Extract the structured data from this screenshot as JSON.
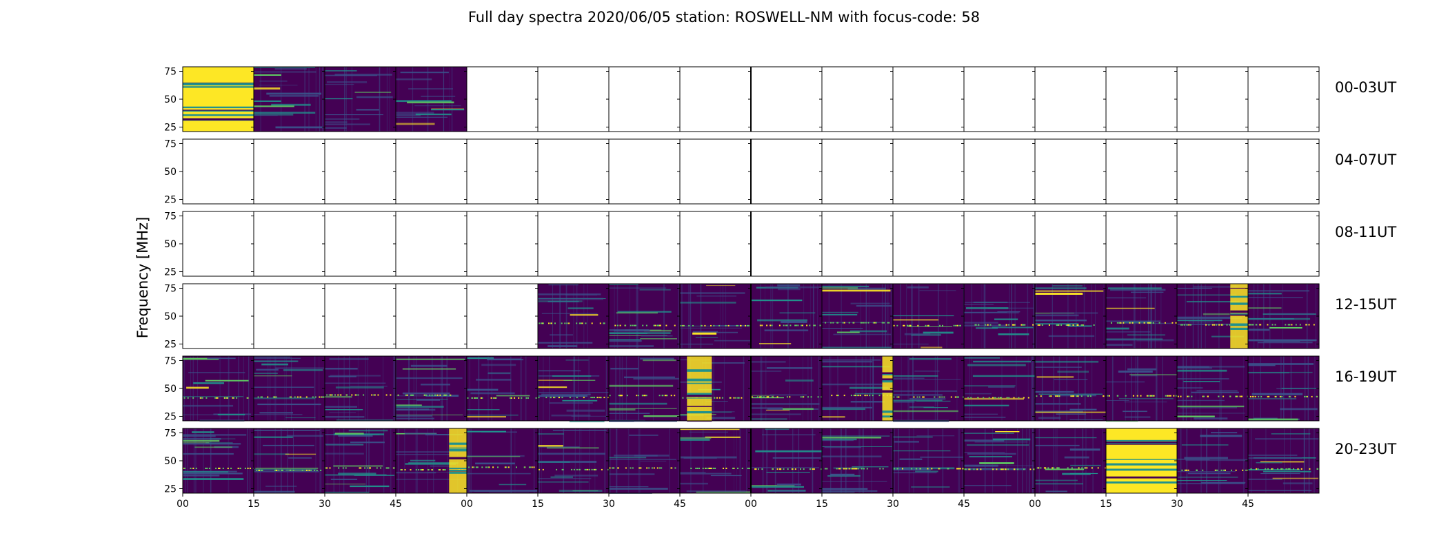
{
  "chart_data": {
    "type": "heatmap",
    "title": "Full day spectra 2020/06/05 station: ROSWELL-NM with focus-code: 58",
    "ylabel": "Frequency [MHz]",
    "xlabel": "",
    "ylim": [
      21,
      79
    ],
    "yticks": [
      "25",
      "50",
      "75"
    ],
    "xtick_labels": [
      "00",
      "15",
      "30",
      "45",
      "00",
      "15",
      "30",
      "45",
      "00",
      "15",
      "30",
      "45",
      "00",
      "15",
      "30",
      "45"
    ],
    "row_labels": [
      "00-03UT",
      "04-07UT",
      "08-11UT",
      "12-15UT",
      "16-19UT",
      "20-23UT"
    ],
    "colormap": [
      "#440154",
      "#3b528b",
      "#21918c",
      "#5ec962",
      "#fde725"
    ],
    "panels_per_row": 16,
    "panel_minutes": 15,
    "row_hours": 4,
    "data_panels": [
      [
        1,
        1,
        1,
        1,
        0,
        0,
        0,
        0,
        0,
        0,
        0,
        0,
        0,
        0,
        0,
        0
      ],
      [
        0,
        0,
        0,
        0,
        0,
        0,
        0,
        0,
        0,
        0,
        0,
        0,
        0,
        0,
        0,
        0
      ],
      [
        0,
        0,
        0,
        0,
        0,
        0,
        0,
        0,
        0,
        0,
        0,
        0,
        0,
        0,
        0,
        0
      ],
      [
        0,
        0,
        0,
        0,
        0,
        1,
        1,
        1,
        1,
        1,
        1,
        1,
        1,
        1,
        1,
        1
      ],
      [
        1,
        1,
        1,
        1,
        1,
        1,
        1,
        1,
        1,
        1,
        1,
        1,
        1,
        1,
        1,
        1
      ],
      [
        1,
        1,
        1,
        1,
        1,
        1,
        1,
        1,
        1,
        1,
        1,
        1,
        1,
        1,
        1,
        1
      ]
    ],
    "intense_bursts": [
      {
        "row": 0,
        "panel": 0,
        "level": "high"
      },
      {
        "row": 3,
        "panel": 14,
        "level": "high"
      },
      {
        "row": 4,
        "panel": 7,
        "level": "high"
      },
      {
        "row": 4,
        "panel": 9,
        "level": "high"
      },
      {
        "row": 5,
        "panel": 3,
        "level": "high"
      },
      {
        "row": 5,
        "panel": 13,
        "level": "high"
      }
    ]
  }
}
